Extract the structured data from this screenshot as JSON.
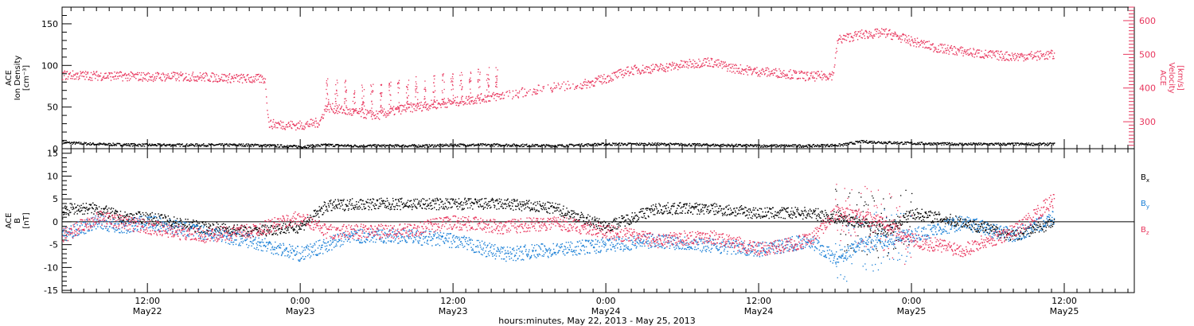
{
  "colors": {
    "density": "#000000",
    "velocity": "#e8365d",
    "bx": "#000000",
    "by": "#1a7fd6",
    "bz": "#e8365d",
    "axis": "#000000",
    "velocity_axis": "#e8365d"
  },
  "xaxis": {
    "title": "hours:minutes, May 22, 2013 - May 25, 2013",
    "range_hours": [
      5.3,
      89.5
    ],
    "ticks": [
      {
        "hour": 12,
        "time": "12:00",
        "day": "May22"
      },
      {
        "hour": 24,
        "time": "0:00",
        "day": "May23"
      },
      {
        "hour": 36,
        "time": "12:00",
        "day": "May23"
      },
      {
        "hour": 48,
        "time": "0:00",
        "day": "May24"
      },
      {
        "hour": 60,
        "time": "12:00",
        "day": "May24"
      },
      {
        "hour": 72,
        "time": "0:00",
        "day": "May25"
      },
      {
        "hour": 84,
        "time": "12:00",
        "day": "May25"
      }
    ]
  },
  "chart_data": [
    {
      "type": "scatter",
      "panel": "plasma",
      "left_axis": {
        "title_lines": [
          "ACE",
          "Ion Density",
          "[cm⁻³]"
        ],
        "ylim": [
          0,
          170
        ],
        "ticks": [
          "0",
          "50",
          "100",
          "150"
        ]
      },
      "right_axis": {
        "title_lines": [
          "ACE",
          "Velocity",
          "[km/s]"
        ],
        "ylim": [
          220,
          640
        ],
        "ticks": [
          "300",
          "400",
          "500",
          "600"
        ]
      },
      "series": [
        {
          "key": "density",
          "axis": "left",
          "x": [
            5.3,
            8,
            12,
            16,
            20,
            22,
            24,
            26,
            28,
            30,
            32,
            34,
            36,
            40,
            44,
            48,
            52,
            56,
            60,
            64,
            66.5,
            68,
            70,
            72,
            76,
            80,
            83.2
          ],
          "y": [
            8,
            6,
            5,
            5,
            5,
            4,
            3,
            5,
            4,
            4,
            4,
            4,
            5,
            5,
            4,
            6,
            6,
            5,
            4,
            4,
            5,
            9,
            8,
            7,
            6,
            6,
            6
          ]
        },
        {
          "key": "velocity",
          "axis": "right",
          "x": [
            5.3,
            8,
            12,
            16,
            19,
            21.2,
            21.5,
            24,
            25.5,
            26,
            28,
            30,
            32,
            34,
            36,
            38,
            40,
            44,
            46,
            48,
            50,
            52,
            54,
            56,
            58,
            60,
            62,
            64,
            65.8,
            66.2,
            68,
            70,
            72,
            74,
            76,
            78,
            80,
            83.2
          ],
          "y": [
            440,
            438,
            435,
            435,
            430,
            428,
            295,
            290,
            300,
            345,
            330,
            320,
            340,
            350,
            360,
            370,
            380,
            405,
            410,
            430,
            455,
            460,
            470,
            480,
            460,
            450,
            445,
            435,
            440,
            545,
            560,
            565,
            540,
            520,
            510,
            500,
            495,
            500
          ]
        }
      ]
    },
    {
      "type": "scatter",
      "panel": "magnetic",
      "left_axis": {
        "title_lines": [
          "ACE",
          "B",
          "[nT]"
        ],
        "ylim": [
          -15.5,
          16
        ],
        "ticks": [
          "-15",
          "-10",
          "-5",
          "0",
          "5",
          "10",
          "15"
        ]
      },
      "series": [
        {
          "key": "bx",
          "name": "B",
          "subscript": "x",
          "x": [
            5.3,
            6,
            8,
            10,
            12,
            16,
            20,
            24,
            26,
            28,
            32,
            36,
            40,
            44,
            48,
            52,
            56,
            60,
            64,
            66,
            68,
            70,
            72,
            76,
            80,
            83.2
          ],
          "y": [
            2,
            3,
            3,
            1,
            1,
            -1,
            -2,
            -1,
            3.5,
            4,
            4,
            4,
            4,
            3,
            -1,
            3,
            3,
            2,
            2,
            1,
            0,
            -2,
            2,
            0,
            -3,
            0
          ]
        },
        {
          "key": "by",
          "name": "B",
          "subscript": "y",
          "x": [
            5.3,
            6,
            8,
            10,
            12,
            16,
            20,
            24,
            26,
            28,
            32,
            36,
            40,
            44,
            48,
            52,
            56,
            60,
            64,
            66,
            68,
            70,
            72,
            76,
            80,
            83.2
          ],
          "y": [
            -3,
            -2,
            0,
            -1,
            0,
            -2,
            -4,
            -7,
            -5,
            -3,
            -3,
            -4,
            -7,
            -6,
            -5,
            -4,
            -5,
            -6,
            -4,
            -8,
            -5,
            -4,
            -3,
            0,
            -3,
            1
          ]
        },
        {
          "key": "bz",
          "name": "B",
          "subscript": "z",
          "x": [
            5.3,
            6,
            8,
            10,
            12,
            16,
            20,
            24,
            26,
            28,
            32,
            36,
            40,
            44,
            48,
            52,
            56,
            60,
            64,
            66,
            68,
            70,
            72,
            76,
            80,
            83.2
          ],
          "y": [
            -3,
            -2,
            1,
            0,
            -1,
            -3,
            -2,
            1,
            -2,
            -2,
            -2,
            0,
            -1,
            0,
            -2,
            -4,
            -3,
            -6,
            -4,
            2,
            1,
            0,
            -4,
            -6,
            -2,
            5
          ]
        }
      ]
    }
  ]
}
